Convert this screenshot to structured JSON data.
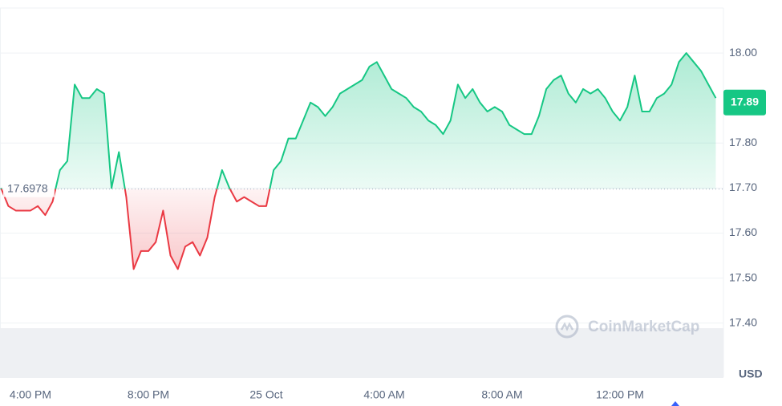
{
  "chart_data": {
    "type": "line",
    "categories": [
      null,
      null,
      null,
      null,
      "4:00 PM",
      null,
      null,
      null,
      null,
      null,
      null,
      null,
      null,
      null,
      null,
      null,
      null,
      null,
      null,
      null,
      "8:00 PM",
      null,
      null,
      null,
      null,
      null,
      null,
      null,
      null,
      null,
      null,
      null,
      null,
      null,
      null,
      null,
      "25 Oct",
      null,
      null,
      null,
      null,
      null,
      null,
      null,
      null,
      null,
      null,
      null,
      null,
      null,
      null,
      null,
      "4:00 AM",
      null,
      null,
      null,
      null,
      null,
      null,
      null,
      null,
      null,
      null,
      null,
      null,
      null,
      null,
      null,
      "8:00 AM",
      null,
      null,
      null,
      null,
      null,
      null,
      null,
      null,
      null,
      null,
      null,
      null,
      null,
      null,
      null,
      "12:00 PM",
      null,
      null,
      null,
      null,
      null,
      null,
      null,
      null,
      null,
      null,
      null,
      null,
      null
    ],
    "values": [
      17.7,
      17.66,
      17.65,
      17.65,
      17.65,
      17.66,
      17.64,
      17.67,
      17.74,
      17.76,
      17.93,
      17.9,
      17.9,
      17.92,
      17.91,
      17.7,
      17.78,
      17.68,
      17.52,
      17.56,
      17.56,
      17.58,
      17.65,
      17.55,
      17.52,
      17.57,
      17.58,
      17.55,
      17.59,
      17.68,
      17.74,
      17.7,
      17.67,
      17.68,
      17.67,
      17.66,
      17.66,
      17.74,
      17.76,
      17.81,
      17.81,
      17.85,
      17.89,
      17.88,
      17.86,
      17.88,
      17.91,
      17.92,
      17.93,
      17.94,
      17.97,
      17.98,
      17.95,
      17.92,
      17.91,
      17.9,
      17.88,
      17.87,
      17.85,
      17.84,
      17.82,
      17.85,
      17.93,
      17.9,
      17.92,
      17.89,
      17.87,
      17.88,
      17.87,
      17.84,
      17.83,
      17.82,
      17.82,
      17.86,
      17.92,
      17.94,
      17.95,
      17.91,
      17.89,
      17.92,
      17.91,
      17.92,
      17.9,
      17.87,
      17.85,
      17.88,
      17.95,
      17.87,
      17.87,
      17.9,
      17.91,
      17.93,
      17.98,
      18.0,
      17.98,
      17.96,
      17.93,
      17.9
    ],
    "up_color": "#16c784",
    "down_color": "#ea3943",
    "baseline": 17.6978,
    "last_price": 17.89,
    "ylim": [
      17.28,
      18.1
    ],
    "yticks": [
      {
        "value": 17.4,
        "label": "17.40"
      },
      {
        "value": 17.5,
        "label": "17.50"
      },
      {
        "value": 17.6,
        "label": "17.60"
      },
      {
        "value": 17.7,
        "label": "17.70"
      },
      {
        "value": 17.8,
        "label": "17.80"
      },
      {
        "value": 18.0,
        "label": "18.00"
      }
    ],
    "y_axis_label": "USD",
    "watermark": "CoinMarketCap",
    "grid": true
  }
}
